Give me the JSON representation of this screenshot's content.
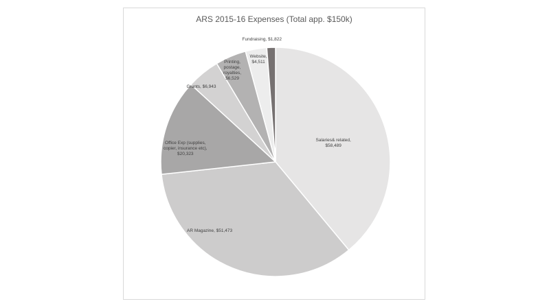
{
  "chart_data": {
    "type": "pie",
    "title": "ARS 2015-16 Expenses (Total app. $150k)",
    "slices": [
      {
        "name": "Salaries& related",
        "value": 58489,
        "label_lines": [
          "Salaries& related,",
          "$58,489"
        ],
        "color": "#e6e5e5"
      },
      {
        "name": "AR Magazine",
        "value": 51473,
        "label_lines": [
          "AR Magazine,  $51,473"
        ],
        "color": "#cdcccc"
      },
      {
        "name": "Office Exp (supplies, copier, insurance etc)",
        "value": 20323,
        "label_lines": [
          "Office Exp (supplies,",
          "copier, insurance etc),",
          "$20,323"
        ],
        "color": "#a8a7a7"
      },
      {
        "name": "Grants",
        "value": 6943,
        "label_lines": [
          "Grants,  $6,943"
        ],
        "color": "#d3d2d2"
      },
      {
        "name": "Printing, postage, royalties",
        "value": 6529,
        "label_lines": [
          "Printing,",
          "postage,",
          "royalties,",
          "$6,529"
        ],
        "color": "#b3b2b2"
      },
      {
        "name": "Website",
        "value": 4511,
        "label_lines": [
          "Website,",
          "$4,511"
        ],
        "color": "#ededed"
      },
      {
        "name": "Fundraising",
        "value": 1822,
        "label_lines": [
          "Fundraising,  $1,822"
        ],
        "color": "#767171"
      }
    ],
    "start_angle_deg": 0,
    "direction": "clockwise",
    "legend": "none",
    "data_labels": "category name and value"
  }
}
